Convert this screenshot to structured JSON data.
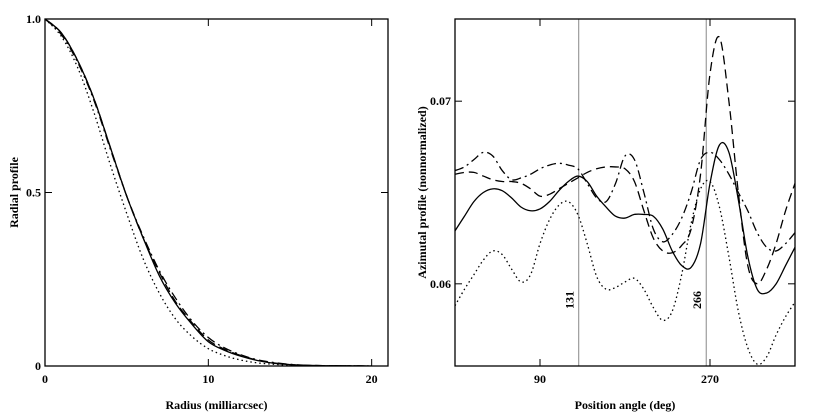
{
  "chart_data": [
    {
      "type": "line",
      "xlabel": "Radius (milliarcsec)",
      "ylabel": "Radial profile",
      "xlim": [
        0,
        21
      ],
      "ylim": [
        0,
        1.0
      ],
      "x_ticks": [
        {
          "value": 0,
          "label": "0"
        },
        {
          "value": 10,
          "label": "10"
        },
        {
          "value": 20,
          "label": "20"
        }
      ],
      "y_ticks": [
        {
          "value": 0,
          "label": "0"
        },
        {
          "value": 0.5,
          "label": "0.5"
        },
        {
          "value": 1.0,
          "label": "1.0"
        }
      ],
      "series": [
        {
          "style": "solid",
          "x": [
            0,
            1,
            2,
            3,
            4,
            5,
            6,
            7,
            8,
            9,
            10,
            11,
            12,
            13,
            14,
            15,
            16,
            17,
            18,
            20
          ],
          "y": [
            1.0,
            0.96,
            0.88,
            0.77,
            0.63,
            0.49,
            0.37,
            0.26,
            0.18,
            0.12,
            0.07,
            0.045,
            0.028,
            0.016,
            0.008,
            0.004,
            0.002,
            0.001,
            0.0005,
            0
          ]
        },
        {
          "style": "dashed",
          "x": [
            0,
            1,
            2,
            3,
            4,
            5,
            6,
            7,
            8,
            9,
            10,
            11,
            12,
            13,
            14,
            15,
            16,
            17,
            18,
            20
          ],
          "y": [
            1.0,
            0.96,
            0.88,
            0.77,
            0.63,
            0.49,
            0.37,
            0.27,
            0.185,
            0.125,
            0.075,
            0.048,
            0.03,
            0.017,
            0.009,
            0.004,
            0.002,
            0.001,
            0.0005,
            0
          ]
        },
        {
          "style": "dashdot",
          "x": [
            0,
            1,
            2,
            3,
            4,
            5,
            6,
            7,
            8,
            9,
            10,
            11,
            12,
            13,
            14,
            15,
            16,
            17,
            18,
            20
          ],
          "y": [
            1.0,
            0.955,
            0.875,
            0.765,
            0.625,
            0.49,
            0.375,
            0.275,
            0.195,
            0.13,
            0.082,
            0.052,
            0.032,
            0.018,
            0.01,
            0.005,
            0.002,
            0.001,
            0.0005,
            0
          ]
        },
        {
          "style": "dotted",
          "x": [
            0,
            1,
            2,
            3,
            4,
            5,
            6,
            7,
            8,
            9,
            10,
            11,
            12,
            13,
            14,
            15,
            16,
            17,
            18,
            20
          ],
          "y": [
            1.0,
            0.95,
            0.86,
            0.73,
            0.58,
            0.44,
            0.31,
            0.21,
            0.135,
            0.085,
            0.05,
            0.03,
            0.017,
            0.009,
            0.005,
            0.002,
            0.001,
            0.0005,
            0.0002,
            0
          ]
        }
      ]
    },
    {
      "type": "line",
      "xlabel": "Position angle (deg)",
      "ylabel": "Azimutal profile (nonnormalized)",
      "xlim": [
        0,
        360
      ],
      "ylim": [
        0.0555,
        0.0745
      ],
      "x_ticks": [
        {
          "value": 90,
          "label": "90"
        },
        {
          "value": 270,
          "label": "270"
        }
      ],
      "y_ticks": [
        {
          "value": 0.06,
          "label": "0.06"
        },
        {
          "value": 0.07,
          "label": "0.07"
        }
      ],
      "vlines": [
        {
          "value": 131,
          "label": "131"
        },
        {
          "value": 266,
          "label": "266"
        }
      ],
      "series": [
        {
          "style": "solid",
          "x": [
            0,
            10,
            20,
            30,
            40,
            50,
            60,
            70,
            80,
            90,
            100,
            110,
            120,
            130,
            140,
            150,
            160,
            170,
            180,
            190,
            200,
            210,
            220,
            230,
            240,
            250,
            260,
            270,
            280,
            290,
            300,
            310,
            320,
            330,
            340,
            350,
            360
          ],
          "y": [
            0.0629,
            0.0637,
            0.0645,
            0.065,
            0.0652,
            0.0651,
            0.0647,
            0.0642,
            0.064,
            0.0641,
            0.0645,
            0.0651,
            0.0656,
            0.0659,
            0.0656,
            0.0648,
            0.0642,
            0.0637,
            0.0636,
            0.0638,
            0.0638,
            0.0637,
            0.063,
            0.0618,
            0.061,
            0.0609,
            0.0622,
            0.0655,
            0.0676,
            0.0672,
            0.0646,
            0.0615,
            0.0597,
            0.0595,
            0.06,
            0.061,
            0.062
          ]
        },
        {
          "style": "dashed",
          "x": [
            0,
            10,
            20,
            30,
            40,
            50,
            60,
            70,
            80,
            90,
            100,
            110,
            120,
            130,
            140,
            150,
            160,
            170,
            180,
            190,
            200,
            210,
            220,
            230,
            240,
            250,
            260,
            270,
            280,
            290,
            300,
            310,
            320,
            330,
            340,
            350,
            360
          ],
          "y": [
            0.066,
            0.0661,
            0.0661,
            0.0659,
            0.0657,
            0.0656,
            0.0656,
            0.0655,
            0.0652,
            0.0648,
            0.0649,
            0.0652,
            0.0655,
            0.0658,
            0.0661,
            0.0663,
            0.0664,
            0.0664,
            0.0663,
            0.0656,
            0.064,
            0.0625,
            0.0618,
            0.0617,
            0.0621,
            0.063,
            0.066,
            0.0715,
            0.0735,
            0.07,
            0.065,
            0.061,
            0.06,
            0.0608,
            0.0622,
            0.064,
            0.0655
          ]
        },
        {
          "style": "dashdot",
          "x": [
            0,
            10,
            20,
            30,
            40,
            50,
            60,
            70,
            80,
            90,
            100,
            110,
            120,
            130,
            140,
            150,
            160,
            170,
            180,
            190,
            200,
            210,
            220,
            230,
            240,
            250,
            260,
            270,
            280,
            290,
            300,
            310,
            320,
            330,
            340,
            350,
            360
          ],
          "y": [
            0.0662,
            0.0664,
            0.0668,
            0.0672,
            0.067,
            0.0662,
            0.0657,
            0.0658,
            0.066,
            0.0663,
            0.0665,
            0.0666,
            0.0665,
            0.0663,
            0.0655,
            0.0647,
            0.0645,
            0.0655,
            0.067,
            0.0668,
            0.065,
            0.063,
            0.0623,
            0.0627,
            0.0636,
            0.065,
            0.0668,
            0.0672,
            0.0668,
            0.066,
            0.065,
            0.064,
            0.0628,
            0.062,
            0.0618,
            0.0622,
            0.0628
          ]
        },
        {
          "style": "dotted",
          "x": [
            0,
            10,
            20,
            30,
            40,
            50,
            60,
            70,
            80,
            90,
            100,
            110,
            120,
            130,
            140,
            150,
            160,
            170,
            180,
            190,
            200,
            210,
            220,
            230,
            240,
            250,
            260,
            270,
            280,
            290,
            300,
            310,
            320,
            330,
            340,
            350,
            360
          ],
          "y": [
            0.0588,
            0.0597,
            0.0605,
            0.0613,
            0.0618,
            0.0616,
            0.0608,
            0.0601,
            0.0605,
            0.0622,
            0.0635,
            0.0643,
            0.0645,
            0.0638,
            0.0622,
            0.0604,
            0.0597,
            0.0598,
            0.0601,
            0.0603,
            0.0597,
            0.0587,
            0.058,
            0.0585,
            0.0605,
            0.0633,
            0.0652,
            0.0656,
            0.0642,
            0.0615,
            0.0585,
            0.0565,
            0.0556,
            0.056,
            0.0572,
            0.0582,
            0.059
          ]
        }
      ]
    }
  ]
}
